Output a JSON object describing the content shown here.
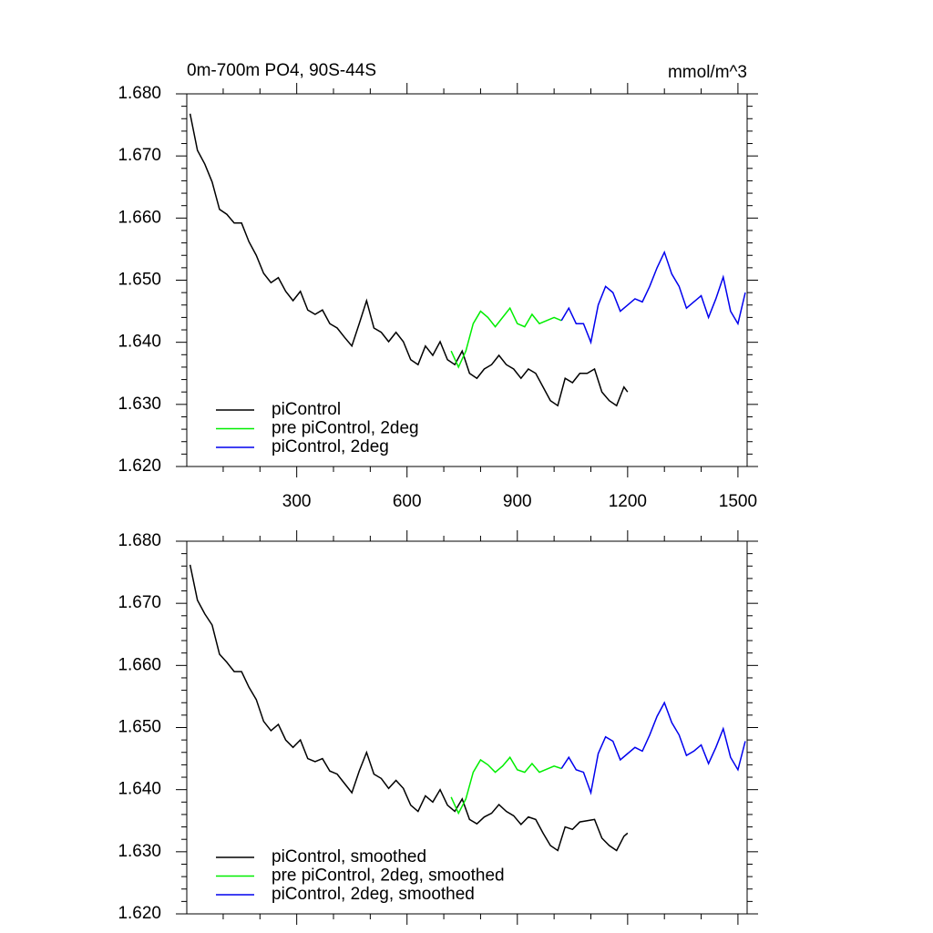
{
  "chart_data": [
    {
      "type": "line",
      "title": "0m-700m PO4, 90S-44S",
      "units": "mmol/m^3",
      "xlim": [
        1,
        1525
      ],
      "xticks": [
        300,
        600,
        900,
        1200,
        1500
      ],
      "xtick_labels": true,
      "ylim": [
        1.62,
        1.68
      ],
      "yticks": [
        {
          "value": 1.62,
          "label": "1.620"
        },
        {
          "value": 1.63,
          "label": "1.630"
        },
        {
          "value": 1.64,
          "label": "1.640"
        },
        {
          "value": 1.65,
          "label": "1.650"
        },
        {
          "value": 1.66,
          "label": "1.660"
        },
        {
          "value": 1.67,
          "label": "1.670"
        },
        {
          "value": 1.68,
          "label": "1.680"
        }
      ],
      "legend": "lower left",
      "series": [
        {
          "name": "piControl",
          "color": "#000000",
          "x": [
            10,
            30,
            50,
            70,
            90,
            110,
            130,
            150,
            170,
            190,
            210,
            230,
            250,
            270,
            290,
            310,
            330,
            350,
            370,
            390,
            410,
            430,
            450,
            470,
            490,
            510,
            530,
            550,
            570,
            590,
            610,
            630,
            650,
            670,
            690,
            710,
            730,
            750,
            770,
            790,
            810,
            830,
            850,
            870,
            890,
            910,
            930,
            950,
            970,
            990,
            1010,
            1030,
            1050,
            1070,
            1090,
            1110,
            1130,
            1150,
            1170,
            1190,
            1200
          ],
          "values": [
            1.6768,
            1.6709,
            1.6687,
            1.6658,
            1.6614,
            1.6606,
            1.6592,
            1.6592,
            1.6562,
            1.654,
            1.6511,
            1.6496,
            1.6504,
            1.6482,
            1.6467,
            1.6482,
            1.6452,
            1.6445,
            1.6452,
            1.643,
            1.6423,
            1.6408,
            1.6394,
            1.643,
            1.6467,
            1.6423,
            1.6416,
            1.6401,
            1.6416,
            1.6401,
            1.6372,
            1.6364,
            1.6394,
            1.6379,
            1.6401,
            1.6372,
            1.6364,
            1.6386,
            1.635,
            1.6342,
            1.6357,
            1.6364,
            1.6379,
            1.6364,
            1.6357,
            1.6342,
            1.6357,
            1.635,
            1.6328,
            1.6306,
            1.6298,
            1.6342,
            1.6335,
            1.635,
            1.635,
            1.6357,
            1.632,
            1.6306,
            1.6298,
            1.6328,
            1.632
          ]
        },
        {
          "name": "pre piControl, 2deg",
          "color": "#00ee00",
          "x": [
            720,
            740,
            760,
            780,
            800,
            820,
            840,
            860,
            880,
            900,
            920,
            940,
            960,
            980,
            1000,
            1020
          ],
          "values": [
            1.6386,
            1.636,
            1.6386,
            1.643,
            1.645,
            1.644,
            1.6425,
            1.644,
            1.6455,
            1.643,
            1.6425,
            1.6445,
            1.643,
            1.6435,
            1.644,
            1.6435
          ]
        },
        {
          "name": "piControl, 2deg",
          "color": "#0000ee",
          "x": [
            1020,
            1040,
            1060,
            1080,
            1100,
            1120,
            1140,
            1160,
            1180,
            1200,
            1220,
            1240,
            1260,
            1280,
            1300,
            1320,
            1340,
            1360,
            1380,
            1400,
            1420,
            1440,
            1460,
            1480,
            1500,
            1520
          ],
          "values": [
            1.6435,
            1.6455,
            1.643,
            1.643,
            1.64,
            1.646,
            1.649,
            1.648,
            1.645,
            1.646,
            1.647,
            1.6465,
            1.649,
            1.652,
            1.6545,
            1.651,
            1.649,
            1.6455,
            1.6465,
            1.6475,
            1.644,
            1.647,
            1.6505,
            1.645,
            1.643,
            1.648
          ]
        }
      ]
    },
    {
      "type": "line",
      "xlim": [
        1,
        1525
      ],
      "xticks": [
        300,
        600,
        900,
        1200,
        1500
      ],
      "xtick_labels": false,
      "ylim": [
        1.62,
        1.68
      ],
      "yticks": [
        {
          "value": 1.62,
          "label": "1.620"
        },
        {
          "value": 1.63,
          "label": "1.630"
        },
        {
          "value": 1.64,
          "label": "1.640"
        },
        {
          "value": 1.65,
          "label": "1.650"
        },
        {
          "value": 1.66,
          "label": "1.660"
        },
        {
          "value": 1.67,
          "label": "1.670"
        },
        {
          "value": 1.68,
          "label": "1.680"
        }
      ],
      "legend": "lower left",
      "series": [
        {
          "name": "piControl, smoothed",
          "color": "#000000",
          "x": [
            10,
            30,
            50,
            70,
            90,
            110,
            130,
            150,
            170,
            190,
            210,
            230,
            250,
            270,
            290,
            310,
            330,
            350,
            370,
            390,
            410,
            430,
            450,
            470,
            490,
            510,
            530,
            550,
            570,
            590,
            610,
            630,
            650,
            670,
            690,
            710,
            730,
            750,
            770,
            790,
            810,
            830,
            850,
            870,
            890,
            910,
            930,
            950,
            970,
            990,
            1010,
            1030,
            1050,
            1070,
            1090,
            1110,
            1130,
            1150,
            1170,
            1190,
            1200
          ],
          "values": [
            1.6762,
            1.6705,
            1.6683,
            1.6665,
            1.6618,
            1.6605,
            1.659,
            1.659,
            1.6565,
            1.6545,
            1.651,
            1.6495,
            1.6505,
            1.648,
            1.6468,
            1.648,
            1.645,
            1.6445,
            1.645,
            1.643,
            1.6425,
            1.641,
            1.6395,
            1.643,
            1.646,
            1.6425,
            1.6418,
            1.6402,
            1.6415,
            1.6402,
            1.6375,
            1.6365,
            1.639,
            1.638,
            1.64,
            1.6375,
            1.6365,
            1.6385,
            1.6352,
            1.6345,
            1.6356,
            1.6362,
            1.6376,
            1.6365,
            1.6358,
            1.6344,
            1.6356,
            1.6352,
            1.633,
            1.631,
            1.6302,
            1.634,
            1.6336,
            1.6348,
            1.635,
            1.6352,
            1.6322,
            1.631,
            1.6302,
            1.6325,
            1.633
          ]
        },
        {
          "name": "pre piControl, 2deg, smoothed",
          "color": "#00ee00",
          "x": [
            720,
            740,
            760,
            780,
            800,
            820,
            840,
            860,
            880,
            900,
            920,
            940,
            960,
            980,
            1000,
            1020
          ],
          "values": [
            1.6388,
            1.6362,
            1.6385,
            1.6428,
            1.6448,
            1.644,
            1.6428,
            1.6438,
            1.6452,
            1.6432,
            1.6428,
            1.6442,
            1.6428,
            1.6433,
            1.6438,
            1.6434
          ]
        },
        {
          "name": "piControl, 2deg, smoothed",
          "color": "#0000ee",
          "x": [
            1020,
            1040,
            1060,
            1080,
            1100,
            1120,
            1140,
            1160,
            1180,
            1200,
            1220,
            1240,
            1260,
            1280,
            1300,
            1320,
            1340,
            1360,
            1380,
            1400,
            1420,
            1440,
            1460,
            1480,
            1500,
            1520
          ],
          "values": [
            1.6434,
            1.6452,
            1.6432,
            1.6428,
            1.6395,
            1.6458,
            1.6485,
            1.6478,
            1.6448,
            1.6458,
            1.6468,
            1.6462,
            1.6488,
            1.6518,
            1.654,
            1.6508,
            1.6488,
            1.6455,
            1.6462,
            1.6472,
            1.6442,
            1.6468,
            1.6498,
            1.6452,
            1.6432,
            1.6478
          ]
        }
      ]
    }
  ]
}
